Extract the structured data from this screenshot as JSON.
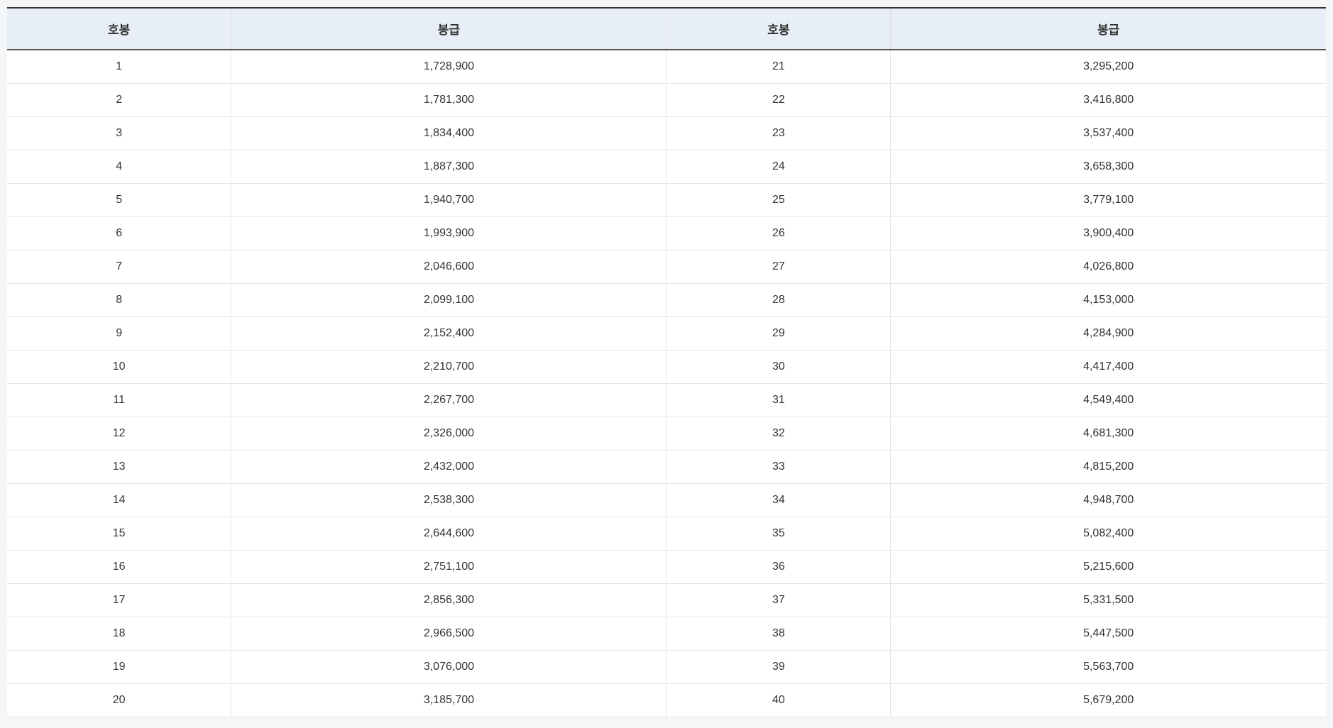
{
  "table": {
    "headers": {
      "step1": "호봉",
      "salary1": "봉급",
      "step2": "호봉",
      "salary2": "봉급"
    },
    "rows": [
      {
        "step1": "1",
        "salary1": "1,728,900",
        "step2": "21",
        "salary2": "3,295,200"
      },
      {
        "step1": "2",
        "salary1": "1,781,300",
        "step2": "22",
        "salary2": "3,416,800"
      },
      {
        "step1": "3",
        "salary1": "1,834,400",
        "step2": "23",
        "salary2": "3,537,400"
      },
      {
        "step1": "4",
        "salary1": "1,887,300",
        "step2": "24",
        "salary2": "3,658,300"
      },
      {
        "step1": "5",
        "salary1": "1,940,700",
        "step2": "25",
        "salary2": "3,779,100"
      },
      {
        "step1": "6",
        "salary1": "1,993,900",
        "step2": "26",
        "salary2": "3,900,400"
      },
      {
        "step1": "7",
        "salary1": "2,046,600",
        "step2": "27",
        "salary2": "4,026,800"
      },
      {
        "step1": "8",
        "salary1": "2,099,100",
        "step2": "28",
        "salary2": "4,153,000"
      },
      {
        "step1": "9",
        "salary1": "2,152,400",
        "step2": "29",
        "salary2": "4,284,900"
      },
      {
        "step1": "10",
        "salary1": "2,210,700",
        "step2": "30",
        "salary2": "4,417,400"
      },
      {
        "step1": "11",
        "salary1": "2,267,700",
        "step2": "31",
        "salary2": "4,549,400"
      },
      {
        "step1": "12",
        "salary1": "2,326,000",
        "step2": "32",
        "salary2": "4,681,300"
      },
      {
        "step1": "13",
        "salary1": "2,432,000",
        "step2": "33",
        "salary2": "4,815,200"
      },
      {
        "step1": "14",
        "salary1": "2,538,300",
        "step2": "34",
        "salary2": "4,948,700"
      },
      {
        "step1": "15",
        "salary1": "2,644,600",
        "step2": "35",
        "salary2": "5,082,400"
      },
      {
        "step1": "16",
        "salary1": "2,751,100",
        "step2": "36",
        "salary2": "5,215,600"
      },
      {
        "step1": "17",
        "salary1": "2,856,300",
        "step2": "37",
        "salary2": "5,331,500"
      },
      {
        "step1": "18",
        "salary1": "2,966,500",
        "step2": "38",
        "salary2": "5,447,500"
      },
      {
        "step1": "19",
        "salary1": "3,076,000",
        "step2": "39",
        "salary2": "5,563,700"
      },
      {
        "step1": "20",
        "salary1": "3,185,700",
        "step2": "40",
        "salary2": "5,679,200"
      }
    ],
    "styling": {
      "header_bg_color": "#e8eef7",
      "body_bg_color": "#ffffff",
      "page_bg_color": "#f5f6f7",
      "border_top_color": "#333333",
      "header_border_bottom_color": "#555555",
      "cell_border_color": "#e5e5e5",
      "text_color": "#333333",
      "header_font_size": 17,
      "cell_font_size": 16,
      "header_font_weight": "bold"
    }
  }
}
